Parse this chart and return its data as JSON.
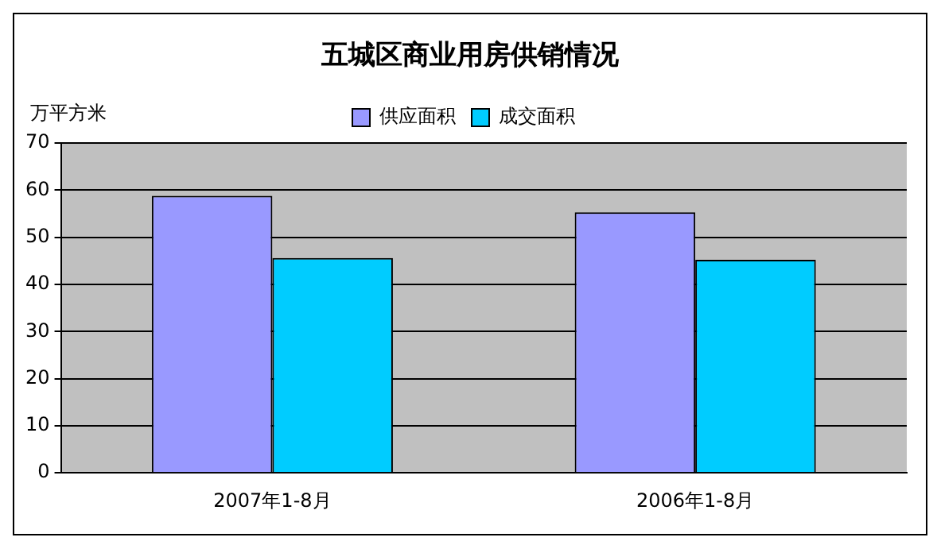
{
  "chart_data": {
    "type": "bar",
    "title": "五城区商业用房供销情况",
    "ylabel": "万平方米",
    "categories": [
      "2007年1-8月",
      "2006年1-8月"
    ],
    "series": [
      {
        "name": "供应面积",
        "color": "#9999ff",
        "values": [
          58.8,
          55.3
        ]
      },
      {
        "name": "成交面积",
        "color": "#00ccff",
        "values": [
          45.6,
          45.2
        ]
      }
    ],
    "ylim": [
      0,
      70
    ],
    "yticks": [
      0,
      10,
      20,
      30,
      40,
      50,
      60,
      70
    ],
    "grid": "y",
    "legend": "top"
  }
}
